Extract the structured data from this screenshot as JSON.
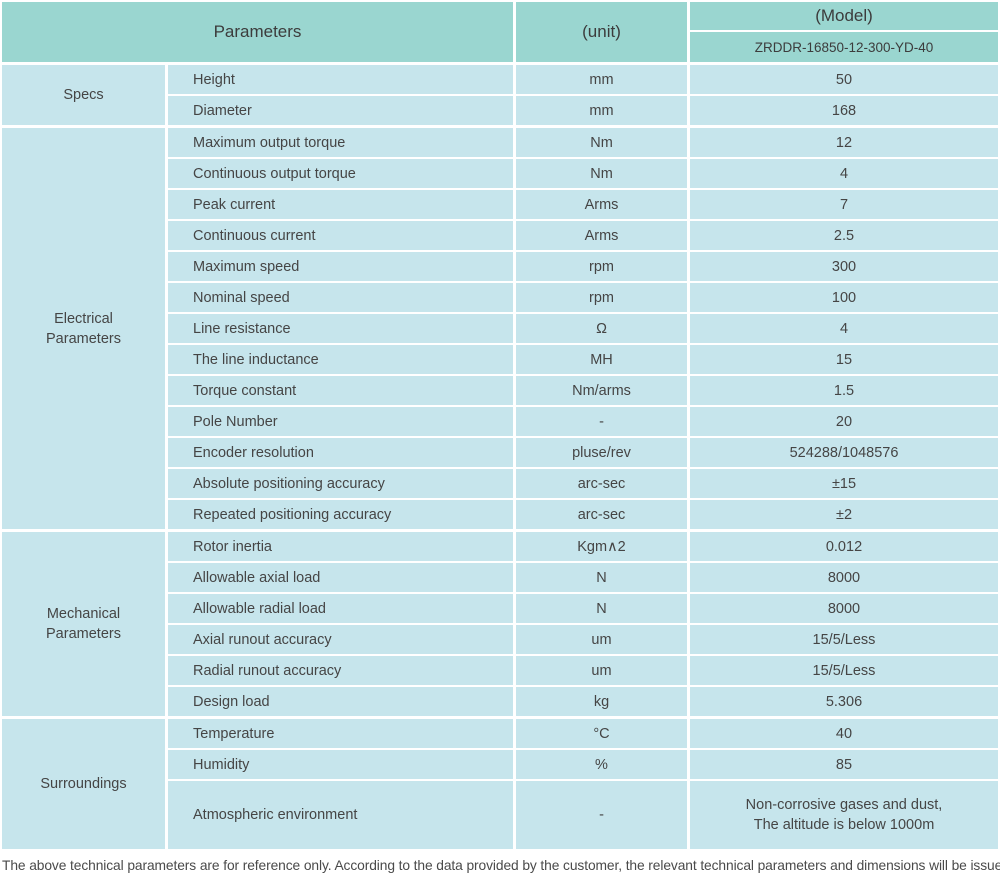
{
  "table": {
    "header": {
      "parameters_label": "Parameters",
      "unit_label": "(unit)",
      "model_label": "(Model)",
      "model_value": "ZRDDR-16850-12-300-YD-40"
    },
    "sections": [
      {
        "group": "Specs",
        "rows": [
          {
            "param": "Height",
            "unit": "mm",
            "value": "50"
          },
          {
            "param": "Diameter",
            "unit": "mm",
            "value": "168"
          }
        ]
      },
      {
        "group": "Electrical\nParameters",
        "rows": [
          {
            "param": "Maximum output torque",
            "unit": "Nm",
            "value": "12"
          },
          {
            "param": "Continuous output torque",
            "unit": "Nm",
            "value": "4"
          },
          {
            "param": "Peak current",
            "unit": "Arms",
            "value": "7"
          },
          {
            "param": "Continuous current",
            "unit": "Arms",
            "value": "2.5"
          },
          {
            "param": "Maximum speed",
            "unit": "rpm",
            "value": "300"
          },
          {
            "param": "Nominal speed",
            "unit": "rpm",
            "value": "100"
          },
          {
            "param": "Line resistance",
            "unit": "Ω",
            "value": "4"
          },
          {
            "param": "The line inductance",
            "unit": "MH",
            "value": "15"
          },
          {
            "param": "Torque constant",
            "unit": "Nm/arms",
            "value": "1.5"
          },
          {
            "param": "Pole Number",
            "unit": "-",
            "value": "20"
          },
          {
            "param": "Encoder resolution",
            "unit": "pluse/rev",
            "value": "524288/1048576"
          },
          {
            "param": "Absolute positioning accuracy",
            "unit": "arc-sec",
            "value": "±15"
          },
          {
            "param": "Repeated positioning accuracy",
            "unit": "arc-sec",
            "value": "±2"
          }
        ]
      },
      {
        "group": "Mechanical\nParameters",
        "rows": [
          {
            "param": "Rotor inertia",
            "unit": "Kgm∧2",
            "value": "0.012"
          },
          {
            "param": "Allowable axial load",
            "unit": "N",
            "value": "8000"
          },
          {
            "param": "Allowable radial load",
            "unit": "N",
            "value": "8000"
          },
          {
            "param": "Axial runout accuracy",
            "unit": "um",
            "value": "15/5/Less"
          },
          {
            "param": "Radial runout accuracy",
            "unit": "um",
            "value": "15/5/Less"
          },
          {
            "param": "Design load",
            "unit": "kg",
            "value": "5.306"
          }
        ]
      },
      {
        "group": "Surroundings",
        "rows": [
          {
            "param": "Temperature",
            "unit": "°C",
            "value": "40"
          },
          {
            "param": "Humidity",
            "unit": "%",
            "value": "85"
          },
          {
            "param": "Atmospheric environment",
            "unit": "-",
            "value": "Non-corrosive gases and dust,\nThe altitude is below 1000m",
            "tall": true
          }
        ]
      }
    ],
    "footnote": "The above technical parameters are for reference only. According to the data provided by the customer, the relevant technical parameters and dimensions will be issued.",
    "colors": {
      "header_bg": "#9ad6d0",
      "row_bg": "#c6e5ec",
      "divider": "#ffffff",
      "text": "#454545"
    }
  }
}
